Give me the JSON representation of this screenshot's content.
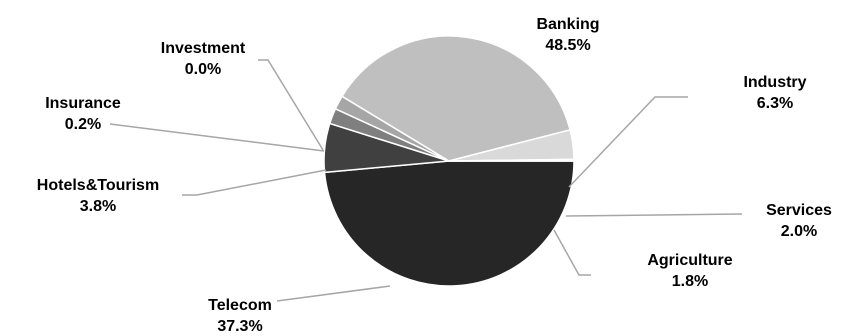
{
  "chart_data": {
    "type": "pie",
    "title": "",
    "slices": [
      {
        "label": "Banking",
        "value": 48.5,
        "display": "48.5%",
        "color": "#262626"
      },
      {
        "label": "Industry",
        "value": 6.3,
        "display": "6.3%",
        "color": "#404040"
      },
      {
        "label": "Services",
        "value": 2.0,
        "display": "2.0%",
        "color": "#7f7f7f"
      },
      {
        "label": "Agriculture",
        "value": 1.8,
        "display": "1.8%",
        "color": "#a6a6a6"
      },
      {
        "label": "Telecom",
        "value": 37.3,
        "display": "37.3%",
        "color": "#bfbfbf"
      },
      {
        "label": "Hotels&Tourism",
        "value": 3.8,
        "display": "3.8%",
        "color": "#d9d9d9"
      },
      {
        "label": "Insurance",
        "value": 0.2,
        "display": "0.2%",
        "color": "#e7e7e7"
      },
      {
        "label": "Investment",
        "value": 0.0,
        "display": "0.0%",
        "color": "#f2f2f2"
      }
    ],
    "legend": "none",
    "labels": "outside-with-leader-lines"
  }
}
